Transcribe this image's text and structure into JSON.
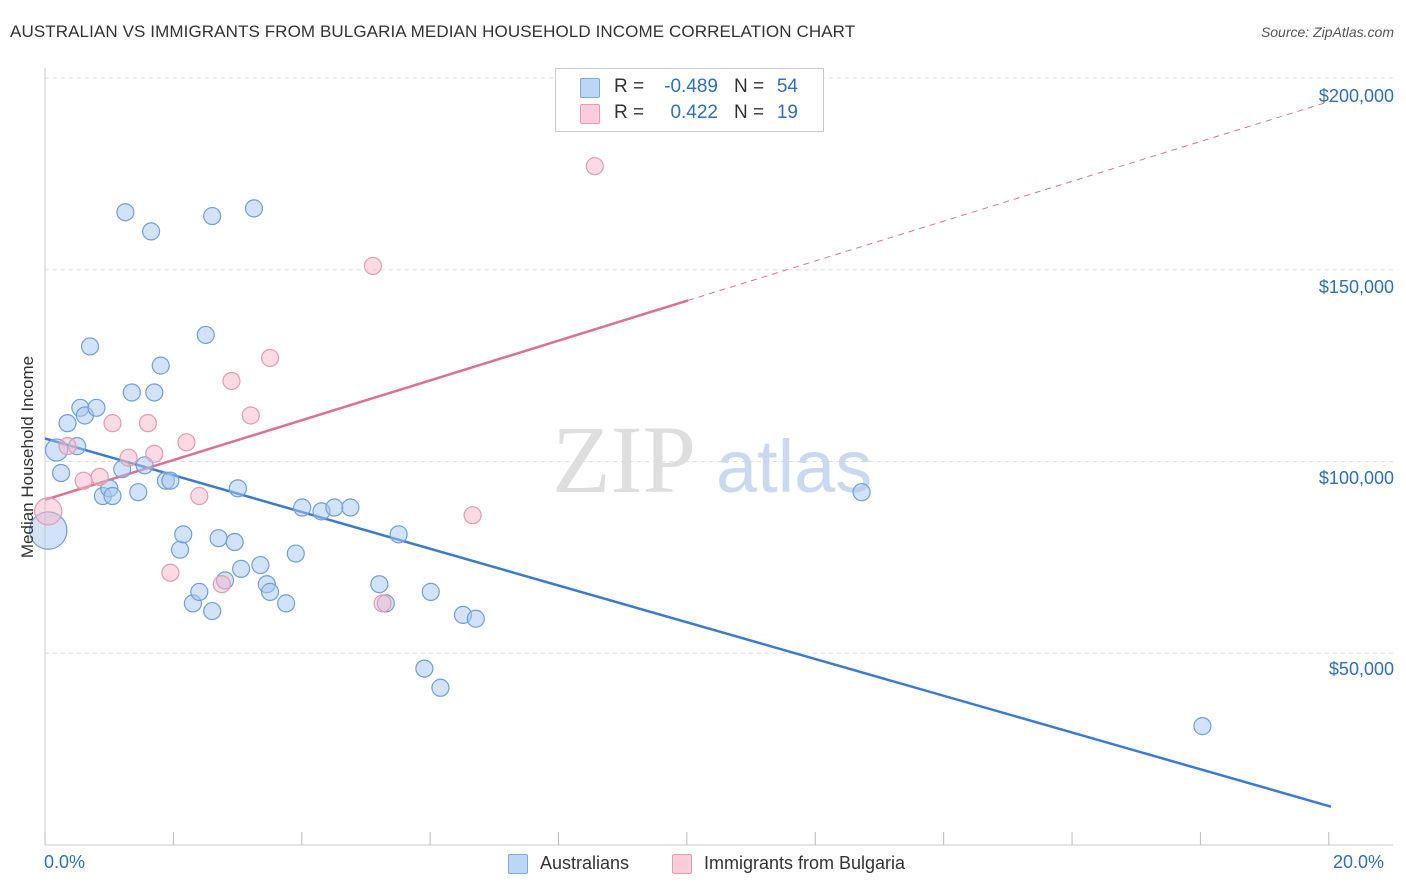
{
  "title": "AUSTRALIAN VS IMMIGRANTS FROM BULGARIA MEDIAN HOUSEHOLD INCOME CORRELATION CHART",
  "source": "Source: ZipAtlas.com",
  "watermark": {
    "zip": "ZIP",
    "atlas": "atlas"
  },
  "legend": {
    "r_label": "R =",
    "n_label": "N =",
    "rows": [
      {
        "series": "Australians",
        "r": "-0.489",
        "n": "54",
        "color": "#a8c8f0"
      },
      {
        "series": "Immigrants from Bulgaria",
        "r": "0.422",
        "n": "19",
        "color": "#f5b8c8"
      }
    ]
  },
  "bottom_legend": [
    "Australians",
    "Immigrants from Bulgaria"
  ],
  "colors": {
    "blue": "#3a7bd5",
    "pink": "#e0708f",
    "blue_fill": "#a8c8f0",
    "pink_fill": "#f5b8c8",
    "tick_text": "#2f6ec0",
    "grid": "#dddddd"
  },
  "chart_data": {
    "type": "scatter",
    "xlabel": "",
    "ylabel": "Median Household Income",
    "xlim": [
      0,
      20
    ],
    "ylim": [
      0,
      200000
    ],
    "x_tick_labels": {
      "min": "0.0%",
      "max": "20.0%"
    },
    "y_ticks": [
      {
        "value": 50000,
        "label": "$50,000"
      },
      {
        "value": 100000,
        "label": "$100,000"
      },
      {
        "value": 150000,
        "label": "$150,000"
      },
      {
        "value": 200000,
        "label": "$200,000"
      }
    ],
    "series": [
      {
        "name": "Australians",
        "color": "#3a7bd5",
        "points": [
          [
            0.05,
            82000,
            2.2
          ],
          [
            0.18,
            103000,
            1.3
          ],
          [
            0.25,
            97000,
            1
          ],
          [
            0.35,
            110000,
            1
          ],
          [
            0.5,
            104000,
            1
          ],
          [
            0.55,
            114000,
            1
          ],
          [
            0.62,
            112000,
            1
          ],
          [
            0.7,
            130000,
            1
          ],
          [
            0.8,
            114000,
            1
          ],
          [
            0.9,
            91000,
            1
          ],
          [
            1.0,
            93000,
            1
          ],
          [
            1.05,
            91000,
            1
          ],
          [
            1.2,
            98000,
            1
          ],
          [
            1.25,
            165000,
            1
          ],
          [
            1.35,
            118000,
            1
          ],
          [
            1.45,
            92000,
            1
          ],
          [
            1.55,
            99000,
            1
          ],
          [
            1.65,
            160000,
            1
          ],
          [
            1.7,
            118000,
            1
          ],
          [
            1.8,
            125000,
            1
          ],
          [
            1.88,
            95000,
            1
          ],
          [
            1.95,
            95000,
            1
          ],
          [
            2.1,
            77000,
            1
          ],
          [
            2.15,
            81000,
            1
          ],
          [
            2.3,
            63000,
            1
          ],
          [
            2.4,
            66000,
            1
          ],
          [
            2.5,
            133000,
            1
          ],
          [
            2.6,
            61000,
            1
          ],
          [
            2.6,
            164000,
            1
          ],
          [
            2.8,
            69000,
            1
          ],
          [
            2.7,
            80000,
            1
          ],
          [
            2.95,
            79000,
            1
          ],
          [
            3.0,
            93000,
            1
          ],
          [
            3.05,
            72000,
            1
          ],
          [
            3.25,
            166000,
            1
          ],
          [
            3.35,
            73000,
            1
          ],
          [
            3.45,
            68000,
            1
          ],
          [
            3.5,
            66000,
            1
          ],
          [
            3.75,
            63000,
            1
          ],
          [
            3.9,
            76000,
            1
          ],
          [
            4.0,
            88000,
            1
          ],
          [
            4.3,
            87000,
            1
          ],
          [
            4.5,
            88000,
            1
          ],
          [
            4.75,
            88000,
            1
          ],
          [
            5.2,
            68000,
            1
          ],
          [
            5.3,
            63000,
            1
          ],
          [
            5.5,
            81000,
            1
          ],
          [
            5.9,
            46000,
            1
          ],
          [
            6.0,
            66000,
            1
          ],
          [
            6.15,
            41000,
            1
          ],
          [
            6.5,
            60000,
            1
          ],
          [
            6.7,
            59000,
            1
          ],
          [
            12.7,
            92000,
            1
          ],
          [
            18.0,
            31000,
            1
          ]
        ],
        "trend": {
          "x0": 0,
          "y0": 106000,
          "x1": 20,
          "y1": 10000,
          "x_dashed_from": null
        }
      },
      {
        "name": "Immigrants from Bulgaria",
        "color": "#e0708f",
        "points": [
          [
            0.05,
            87000,
            1.6
          ],
          [
            0.35,
            104000,
            1
          ],
          [
            0.6,
            95000,
            1
          ],
          [
            0.85,
            96000,
            1
          ],
          [
            1.05,
            110000,
            1
          ],
          [
            1.3,
            101000,
            1
          ],
          [
            1.6,
            110000,
            1
          ],
          [
            1.7,
            102000,
            1
          ],
          [
            1.95,
            71000,
            1
          ],
          [
            2.2,
            105000,
            1
          ],
          [
            2.4,
            91000,
            1
          ],
          [
            2.75,
            68000,
            1
          ],
          [
            2.9,
            121000,
            1
          ],
          [
            3.2,
            112000,
            1
          ],
          [
            3.5,
            127000,
            1
          ],
          [
            5.1,
            151000,
            1
          ],
          [
            5.25,
            63000,
            1
          ],
          [
            6.65,
            86000,
            1
          ],
          [
            8.55,
            177000,
            1
          ]
        ],
        "trend": {
          "x0": 0,
          "y0": 90000,
          "x1": 20,
          "y1": 194000,
          "x_dashed_from": 10
        }
      }
    ]
  }
}
